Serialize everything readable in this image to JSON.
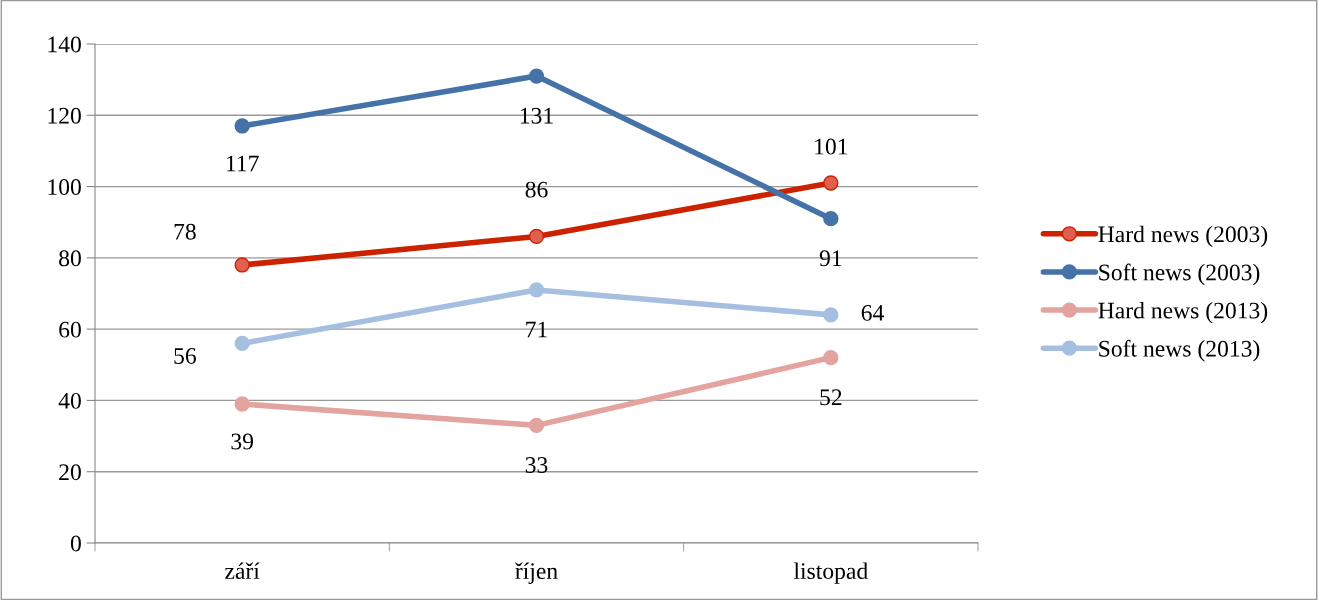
{
  "chart_data": {
    "type": "line",
    "categories": [
      "září",
      "říjen",
      "listopad"
    ],
    "series": [
      {
        "name": "Hard news (2003)",
        "color": "#cc2200",
        "values": [
          78,
          86,
          101
        ]
      },
      {
        "name": "Soft news (2003)",
        "color": "#4572a7",
        "values": [
          117,
          131,
          91
        ]
      },
      {
        "name": "Hard news (2013)",
        "color": "#e3a39e",
        "values": [
          39,
          33,
          52
        ]
      },
      {
        "name": "Soft news (2013)",
        "color": "#a6bfe0",
        "values": [
          56,
          71,
          64
        ]
      }
    ],
    "ylim": [
      0,
      140
    ],
    "yticks": [
      0,
      20,
      40,
      60,
      80,
      100,
      120,
      140
    ],
    "grid": "y",
    "legend": "right",
    "marker": "circle",
    "line_style": "solid",
    "data_labels": true
  }
}
